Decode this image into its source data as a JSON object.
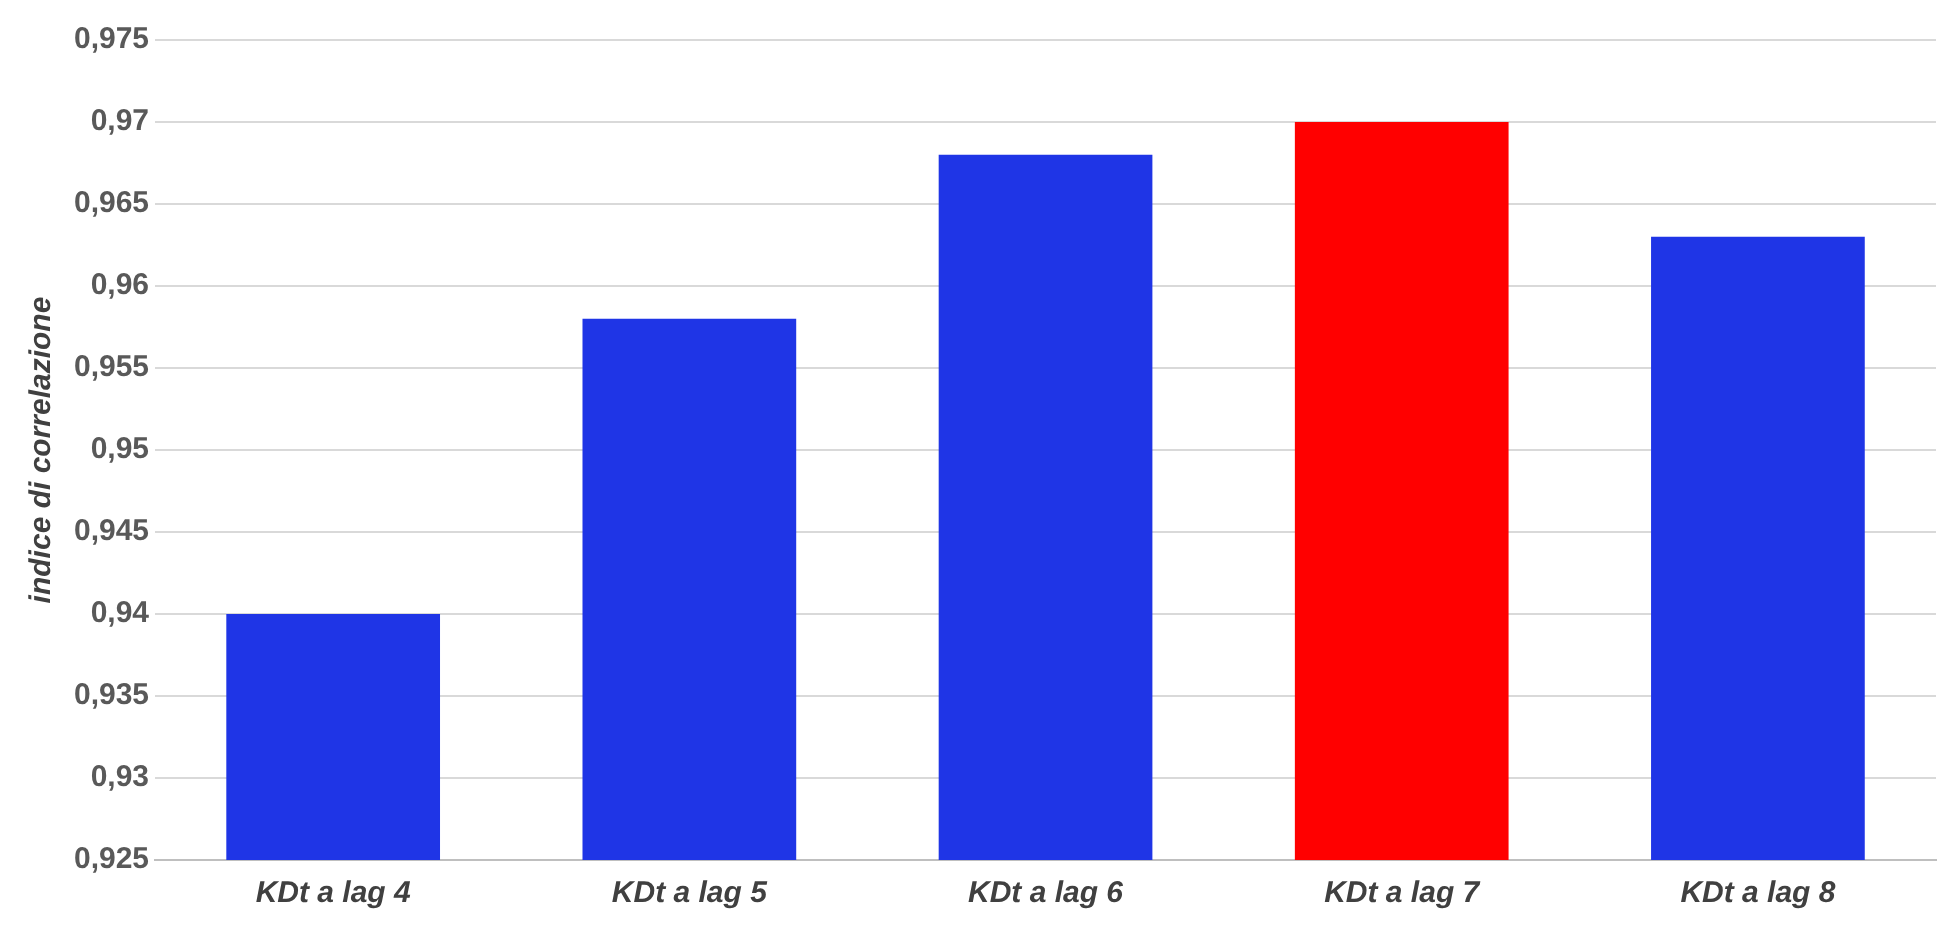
{
  "chart_data": {
    "type": "bar",
    "ylabel": "indice di correlazione",
    "categories": [
      "KDt a lag 4",
      "KDt a lag 5",
      "KDt a lag 6",
      "KDt a lag 7",
      "KDt a lag 8"
    ],
    "values": [
      0.94,
      0.958,
      0.968,
      0.97,
      0.963
    ],
    "colors": [
      "#1f35e6",
      "#1f35e6",
      "#1f35e6",
      "#ff0000",
      "#1f35e6"
    ],
    "ylim": [
      0.925,
      0.975
    ],
    "yticks": [
      {
        "value": 0.925,
        "label": "0,925"
      },
      {
        "value": 0.93,
        "label": "0,93"
      },
      {
        "value": 0.935,
        "label": "0,935"
      },
      {
        "value": 0.94,
        "label": "0,94"
      },
      {
        "value": 0.945,
        "label": "0,945"
      },
      {
        "value": 0.95,
        "label": "0,95"
      },
      {
        "value": 0.955,
        "label": "0,955"
      },
      {
        "value": 0.96,
        "label": "0,96"
      },
      {
        "value": 0.965,
        "label": "0,965"
      },
      {
        "value": 0.97,
        "label": "0,97"
      },
      {
        "value": 0.975,
        "label": "0,975"
      }
    ],
    "grid": "y",
    "legend": false
  }
}
